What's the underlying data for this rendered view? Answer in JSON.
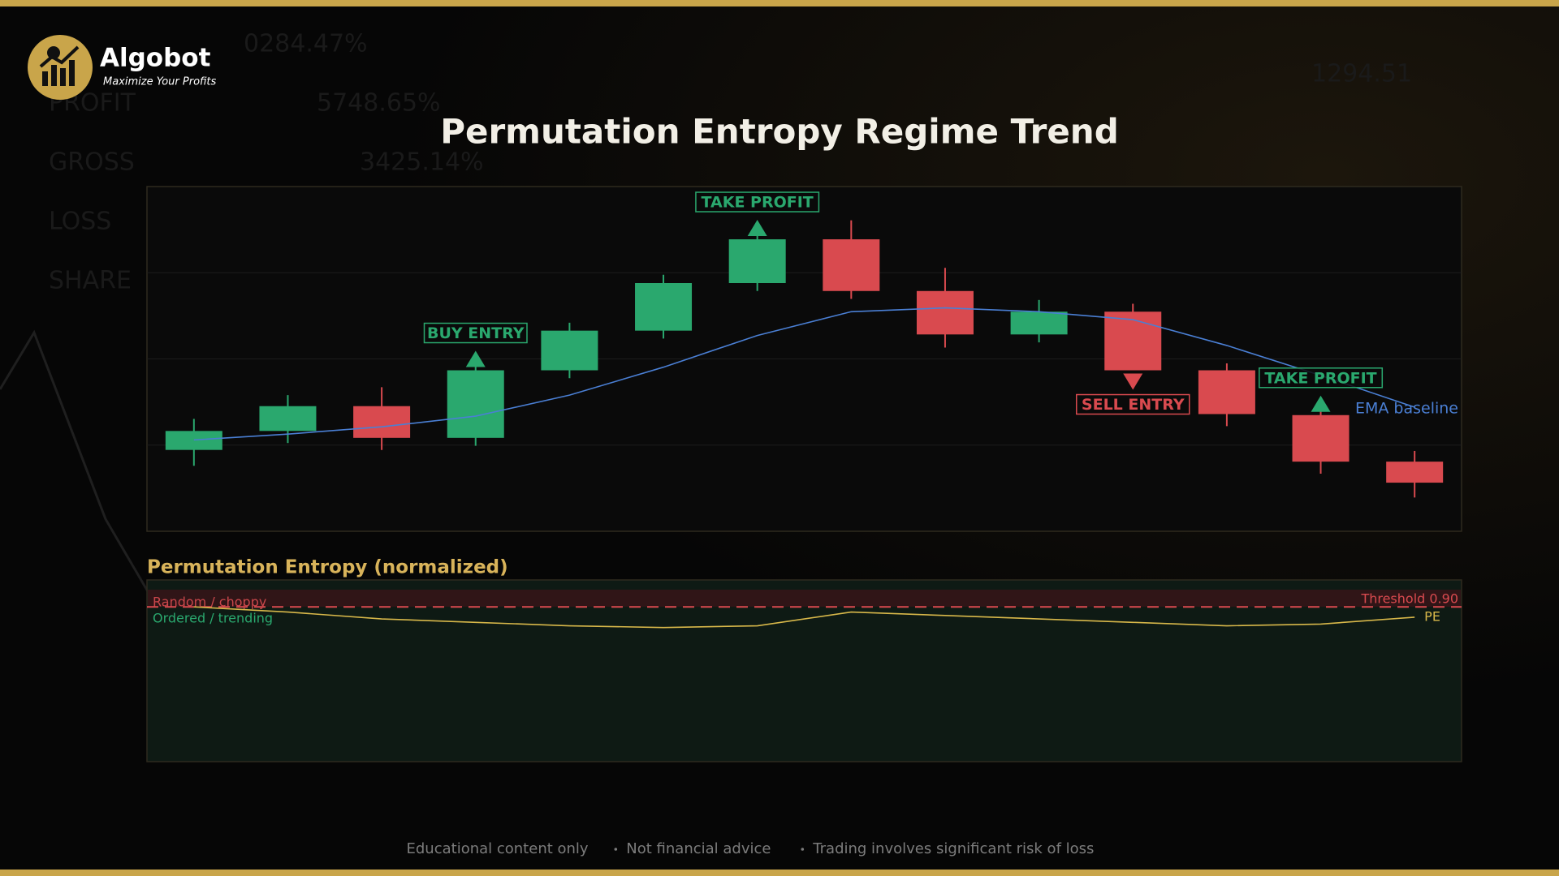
{
  "brand": {
    "name": "Algobot",
    "tagline": "Maximize Your Profits"
  },
  "background_texts": [
    "0284.47%",
    "PROFIT",
    "5748.65%",
    "GROSS",
    "3425.14%",
    "LOSS",
    "SHARE",
    "1294.51"
  ],
  "chart_data": [
    {
      "type": "candlestick",
      "title": "Permutation Entropy Regime Trend",
      "ylim": [
        0,
        100
      ],
      "grid": true,
      "up_color": "#2aa86e",
      "down_color": "#d94a4f",
      "open": [
        23.6,
        29.1,
        36.3,
        27.1,
        46.7,
        58.2,
        72.0,
        84.7,
        69.7,
        57.1,
        63.7,
        46.7,
        33.7,
        20.2
      ],
      "high": [
        32.6,
        39.5,
        41.8,
        49.9,
        60.5,
        74.4,
        88.2,
        90.2,
        76.4,
        67.1,
        66.0,
        48.7,
        36.0,
        23.3
      ],
      "low": [
        19.0,
        25.6,
        23.6,
        24.8,
        44.4,
        55.9,
        69.7,
        67.4,
        53.3,
        54.8,
        46.7,
        30.5,
        16.7,
        9.8
      ],
      "close": [
        29.1,
        36.3,
        27.1,
        46.7,
        58.2,
        72.0,
        84.7,
        69.7,
        57.1,
        63.7,
        46.7,
        34.0,
        20.2,
        14.1
      ],
      "series": [
        {
          "name": "EMA baseline",
          "color": "#4a7fd4",
          "values": [
            26.5,
            28.2,
            30.3,
            33.4,
            39.5,
            47.6,
            56.8,
            63.7,
            64.8,
            63.7,
            61.4,
            53.9,
            45.2,
            36.0
          ]
        }
      ],
      "annotations": [
        {
          "text": "BUY ENTRY",
          "kind": "buy"
        },
        {
          "text": "TAKE PROFIT",
          "kind": "buy"
        },
        {
          "text": "SELL ENTRY",
          "kind": "sell"
        },
        {
          "text": "TAKE PROFIT",
          "kind": "buy"
        }
      ]
    },
    {
      "type": "line",
      "title": "Permutation Entropy (normalized)",
      "ylim": [
        0,
        1
      ],
      "threshold": {
        "value": 0.9,
        "label": "Threshold 0.90",
        "color": "#d94a4f"
      },
      "zones": [
        "Random / choppy",
        "Ordered / trending"
      ],
      "series": [
        {
          "name": "PE",
          "color": "#d8b84a",
          "values": [
            0.9,
            0.87,
            0.83,
            0.81,
            0.79,
            0.78,
            0.79,
            0.87,
            0.85,
            0.83,
            0.81,
            0.79,
            0.8,
            0.84
          ]
        }
      ]
    }
  ],
  "footer": [
    "Educational content only",
    "Not financial advice",
    "Trading involves significant risk of loss"
  ]
}
